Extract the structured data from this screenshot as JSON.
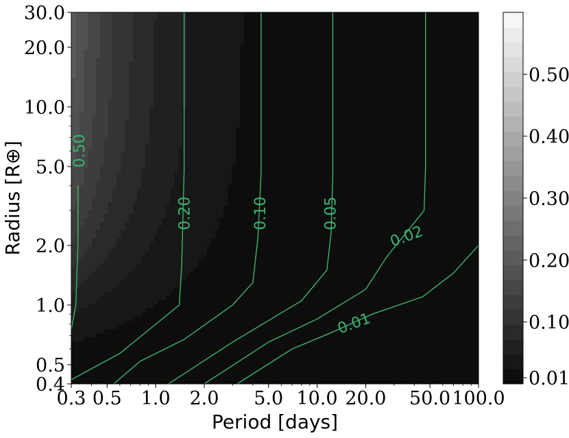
{
  "chart_data": {
    "type": "heatmap",
    "title": "",
    "xlabel": "Period [days]",
    "ylabel": "Radius [R⊕]",
    "x_scale": "log",
    "y_scale": "log",
    "xlim": [
      0.3,
      100.0
    ],
    "ylim": [
      0.4,
      30.0
    ],
    "x_ticks": [
      0.3,
      0.5,
      1.0,
      2.0,
      5.0,
      10.0,
      20.0,
      50.0,
      100.0
    ],
    "x_tick_labels": [
      "0.3",
      "0.5",
      "1.0",
      "2.0",
      "5.0",
      "10.0",
      "20.0",
      "50.0",
      "100.0"
    ],
    "y_ticks": [
      0.4,
      0.5,
      1.0,
      2.0,
      5.0,
      10.0,
      20.0,
      30.0
    ],
    "y_tick_labels": [
      "0.4",
      "0.5",
      "1.0",
      "2.0",
      "5.0",
      "10.0",
      "20.0",
      "30.0"
    ],
    "colormap": "greyscale (black = low, white = high)",
    "colorbar": {
      "range": [
        0.0,
        0.6
      ],
      "levels": 25,
      "ticks": [
        0.01,
        0.1,
        0.2,
        0.3,
        0.4,
        0.5
      ],
      "tick_labels": [
        "0.01",
        "0.10",
        "0.20",
        "0.30",
        "0.40",
        "0.50"
      ]
    },
    "contour_color": "#3cb371",
    "contours": [
      {
        "level": 0.5,
        "label": "0.50",
        "points": [
          [
            0.33,
            4.0
          ],
          [
            0.33,
            2.0
          ],
          [
            0.32,
            1.0
          ],
          [
            0.3,
            0.75
          ]
        ],
        "label_at": [
          0.34,
          6.0
        ]
      },
      {
        "level": 0.2,
        "label": "0.20",
        "points": [
          [
            1.5,
            30.0
          ],
          [
            1.5,
            4.8
          ],
          [
            1.45,
            1.6
          ],
          [
            1.4,
            1.0
          ],
          [
            1.0,
            0.8
          ],
          [
            0.6,
            0.57
          ],
          [
            0.3,
            0.42
          ]
        ],
        "label_at": [
          1.53,
          2.9
        ]
      },
      {
        "level": 0.1,
        "label": "0.10",
        "points": [
          [
            4.5,
            30.0
          ],
          [
            4.5,
            4.7
          ],
          [
            4.3,
            2.2
          ],
          [
            4.0,
            1.3
          ],
          [
            3.0,
            1.0
          ],
          [
            1.5,
            0.67
          ],
          [
            0.8,
            0.52
          ],
          [
            0.55,
            0.4
          ]
        ],
        "label_at": [
          4.5,
          2.9
        ]
      },
      {
        "level": 0.05,
        "label": "0.05",
        "points": [
          [
            12.5,
            30.0
          ],
          [
            12.5,
            4.5
          ],
          [
            12.2,
            2.3
          ],
          [
            11.5,
            1.5
          ],
          [
            8.0,
            1.05
          ],
          [
            3.0,
            0.65
          ],
          [
            1.2,
            0.4
          ]
        ],
        "label_at": [
          12.3,
          2.9
        ]
      },
      {
        "level": 0.02,
        "label": "0.02",
        "points": [
          [
            47.0,
            30.0
          ],
          [
            47.0,
            5.0
          ],
          [
            46.0,
            3.0
          ],
          [
            27.0,
            1.75
          ],
          [
            20.0,
            1.2
          ],
          [
            10.0,
            0.85
          ],
          [
            5.0,
            0.65
          ],
          [
            2.0,
            0.4
          ]
        ],
        "label_at": [
          36.0,
          2.2
        ]
      },
      {
        "level": 0.01,
        "label": "0.01",
        "points": [
          [
            100.0,
            2.0
          ],
          [
            70.0,
            1.45
          ],
          [
            45.0,
            1.1
          ],
          [
            22.0,
            0.9
          ],
          [
            12.0,
            0.72
          ],
          [
            7.0,
            0.6
          ],
          [
            3.2,
            0.4
          ]
        ],
        "label_at": [
          17.0,
          0.8
        ]
      }
    ]
  }
}
